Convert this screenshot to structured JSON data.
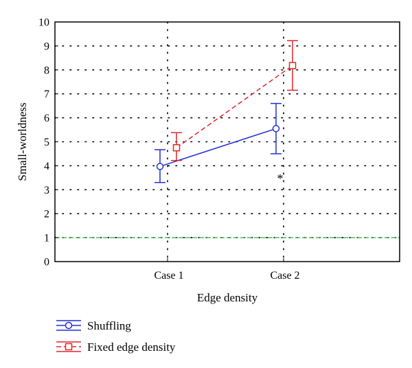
{
  "chart_data": {
    "type": "line",
    "categories": [
      "Case 1",
      "Case 2"
    ],
    "xlabel": "Edge density",
    "ylabel": "Small-worldness",
    "ylim": [
      0,
      10
    ],
    "yticks": [
      "0",
      "1",
      "2",
      "3",
      "4",
      "5",
      "6",
      "7",
      "8",
      "9",
      "10"
    ],
    "grid": true,
    "legend_position": "bottom-left",
    "series": [
      {
        "name": "Shuffling",
        "values": [
          3.97,
          5.55
        ],
        "error_low": [
          3.3,
          4.5
        ],
        "error_high": [
          4.67,
          6.6
        ],
        "color": "#1f2fd0",
        "line_style": "solid",
        "marker": "circle"
      },
      {
        "name": "Fixed edge density",
        "values": [
          4.75,
          8.18
        ],
        "error_low": [
          4.22,
          7.15
        ],
        "error_high": [
          5.38,
          9.22
        ],
        "color": "#e0262a",
        "line_style": "dashed",
        "marker": "square"
      }
    ],
    "reference_line": {
      "y": 1,
      "color": "#2aa84a",
      "line_style": "dashed"
    },
    "annotation": {
      "text": "*"
    }
  }
}
